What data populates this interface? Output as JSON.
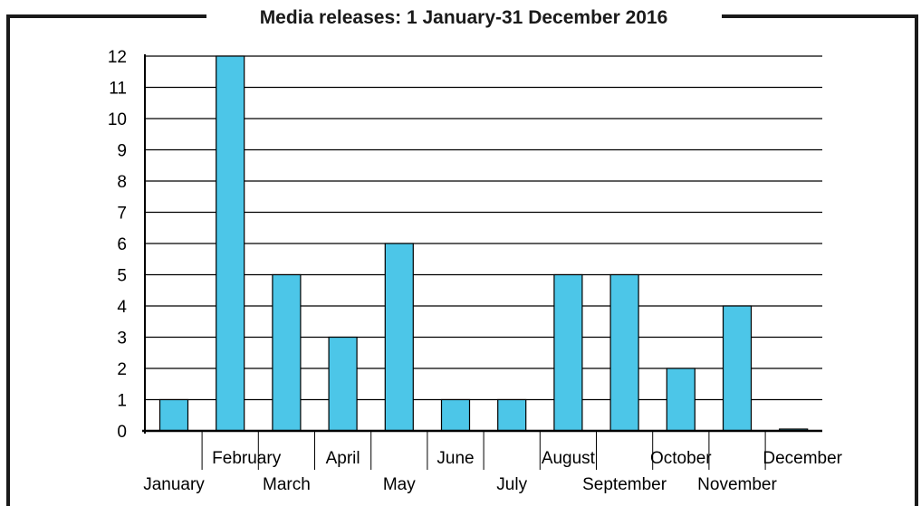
{
  "chart_data": {
    "type": "bar",
    "title": "Media releases: 1 January-31 December 2016",
    "categories": [
      "January",
      "February",
      "March",
      "April",
      "May",
      "June",
      "July",
      "August",
      "September",
      "October",
      "November",
      "December"
    ],
    "values": [
      1,
      12,
      5,
      3,
      6,
      1,
      1,
      5,
      5,
      2,
      4,
      0
    ],
    "ylim": [
      0,
      12
    ],
    "yticks": [
      "0",
      "1",
      "2",
      "3",
      "4",
      "5",
      "6",
      "7",
      "8",
      "9",
      "10",
      "11",
      "12"
    ],
    "grid": true,
    "legend": "none",
    "xlabel": "",
    "ylabel": "",
    "colors": {
      "bar": "#4cc6e8",
      "bar_outline": "#000000",
      "grid": "#000000",
      "frame": "#1a1a1a"
    }
  }
}
